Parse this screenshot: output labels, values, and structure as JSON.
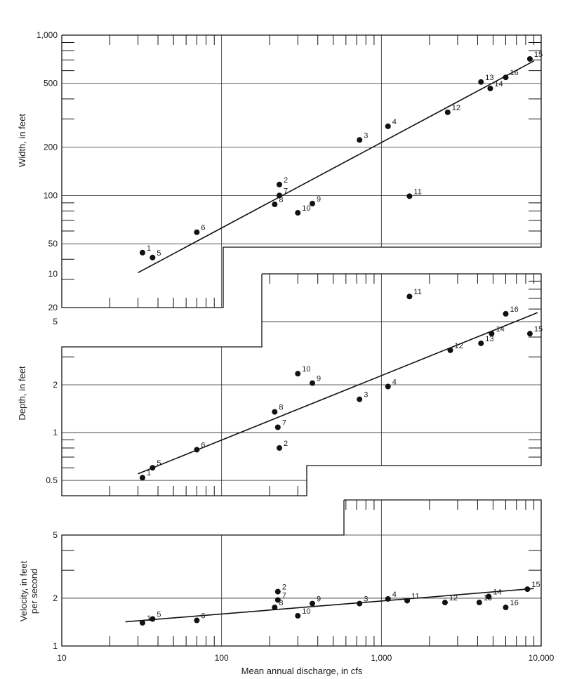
{
  "chart_data": [
    {
      "type": "scatter",
      "panel": "width",
      "ylabel": "Width, in feet",
      "xlabel": "Mean annual discharge, in cfs",
      "x_scale": "log",
      "y_scale": "log",
      "ylim": [
        20,
        1000
      ],
      "ytick_labels": [
        "20",
        "50",
        "100",
        "200",
        "500",
        "1,000"
      ],
      "fit_line": {
        "x": [
          30,
          9000
        ],
        "y": [
          33,
          690
        ]
      },
      "points": [
        {
          "label": "1",
          "x": 32,
          "y": 44
        },
        {
          "label": "2",
          "x": 230,
          "y": 117
        },
        {
          "label": "3",
          "x": 730,
          "y": 222
        },
        {
          "label": "4",
          "x": 1100,
          "y": 270
        },
        {
          "label": "5",
          "x": 37,
          "y": 41
        },
        {
          "label": "6",
          "x": 70,
          "y": 59
        },
        {
          "label": "7",
          "x": 230,
          "y": 100
        },
        {
          "label": "8",
          "x": 215,
          "y": 88
        },
        {
          "label": "9",
          "x": 370,
          "y": 89
        },
        {
          "label": "10",
          "x": 300,
          "y": 78
        },
        {
          "label": "11",
          "x": 1500,
          "y": 99
        },
        {
          "label": "12",
          "x": 2600,
          "y": 330
        },
        {
          "label": "13",
          "x": 4200,
          "y": 510
        },
        {
          "label": "14",
          "x": 4800,
          "y": 465
        },
        {
          "label": "15",
          "x": 8500,
          "y": 710
        },
        {
          "label": "16",
          "x": 6000,
          "y": 545
        }
      ]
    },
    {
      "type": "scatter",
      "panel": "depth",
      "ylabel": "Depth, in feet",
      "xlabel": "Mean annual discharge, in cfs",
      "x_scale": "log",
      "y_scale": "log",
      "ylim": [
        0.4,
        10
      ],
      "ytick_labels": [
        "0.5",
        "1",
        "2",
        "5",
        "10"
      ],
      "fit_line": {
        "x": [
          30,
          9500
        ],
        "y": [
          0.55,
          5.7
        ]
      },
      "points": [
        {
          "label": "1",
          "x": 32,
          "y": 0.52
        },
        {
          "label": "2",
          "x": 230,
          "y": 0.8
        },
        {
          "label": "3",
          "x": 730,
          "y": 1.62
        },
        {
          "label": "4",
          "x": 1100,
          "y": 1.95
        },
        {
          "label": "5",
          "x": 37,
          "y": 0.6
        },
        {
          "label": "6",
          "x": 70,
          "y": 0.78
        },
        {
          "label": "7",
          "x": 225,
          "y": 1.08
        },
        {
          "label": "8",
          "x": 215,
          "y": 1.35
        },
        {
          "label": "9",
          "x": 370,
          "y": 2.05
        },
        {
          "label": "10",
          "x": 300,
          "y": 2.35
        },
        {
          "label": "11",
          "x": 1500,
          "y": 7.2
        },
        {
          "label": "12",
          "x": 2700,
          "y": 3.3
        },
        {
          "label": "13",
          "x": 4200,
          "y": 3.65
        },
        {
          "label": "14",
          "x": 4900,
          "y": 4.2
        },
        {
          "label": "15",
          "x": 8500,
          "y": 4.2
        },
        {
          "label": "16",
          "x": 6000,
          "y": 5.6
        }
      ]
    },
    {
      "type": "scatter",
      "panel": "velocity",
      "ylabel": "Velocity, in feet per second",
      "xlabel": "Mean annual discharge, in cfs",
      "x_scale": "log",
      "y_scale": "log",
      "ylim": [
        1,
        5
      ],
      "ytick_labels": [
        "1",
        "2",
        "5"
      ],
      "xtick_labels": [
        "10",
        "100",
        "1,000",
        "10,000"
      ],
      "fit_line": {
        "x": [
          25,
          9000
        ],
        "y": [
          1.42,
          2.3
        ]
      },
      "points": [
        {
          "label": "1",
          "x": 32,
          "y": 1.4
        },
        {
          "label": "2",
          "x": 225,
          "y": 2.2
        },
        {
          "label": "3",
          "x": 730,
          "y": 1.85
        },
        {
          "label": "4",
          "x": 1100,
          "y": 1.98
        },
        {
          "label": "5",
          "x": 37,
          "y": 1.48
        },
        {
          "label": "6",
          "x": 70,
          "y": 1.45
        },
        {
          "label": "7",
          "x": 225,
          "y": 1.95
        },
        {
          "label": "8",
          "x": 215,
          "y": 1.75
        },
        {
          "label": "9",
          "x": 370,
          "y": 1.85
        },
        {
          "label": "10",
          "x": 300,
          "y": 1.55
        },
        {
          "label": "11",
          "x": 1450,
          "y": 1.93
        },
        {
          "label": "12",
          "x": 2500,
          "y": 1.88
        },
        {
          "label": "13",
          "x": 4100,
          "y": 1.88
        },
        {
          "label": "14",
          "x": 4700,
          "y": 2.05
        },
        {
          "label": "15",
          "x": 8200,
          "y": 2.28
        },
        {
          "label": "16",
          "x": 6000,
          "y": 1.75
        }
      ]
    }
  ]
}
